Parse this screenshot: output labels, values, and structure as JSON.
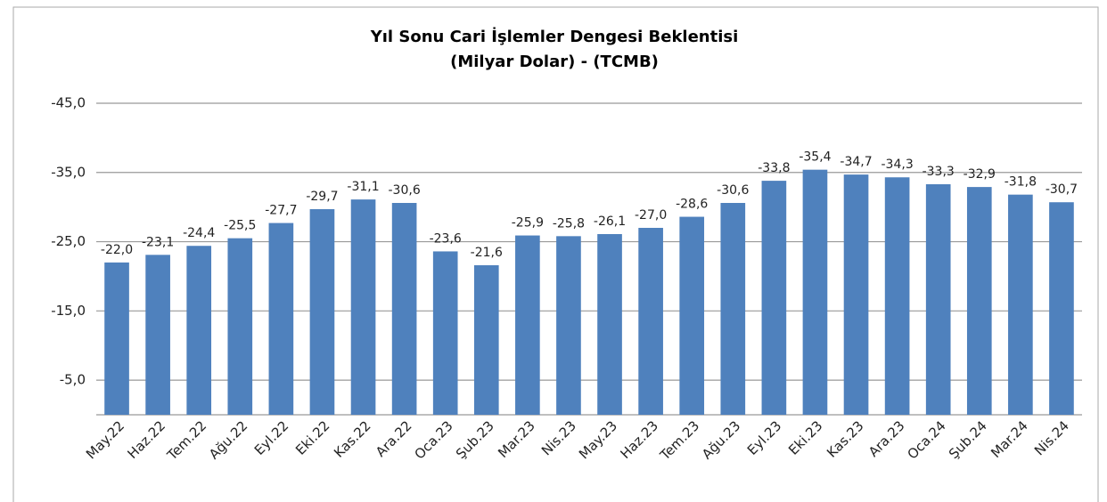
{
  "chart_data": {
    "type": "bar",
    "title": "Yıl Sonu Cari İşlemler Dengesi Beklentisi",
    "subtitle": "(Milyar Dolar) - (TCMB)",
    "categories": [
      "May.22",
      "Haz.22",
      "Tem.22",
      "Ağu.22",
      "Eyl.22",
      "Eki.22",
      "Kas.22",
      "Ara.22",
      "Oca.23",
      "Şub.23",
      "Mar.23",
      "Nis.23",
      "May.23",
      "Haz.23",
      "Tem.23",
      "Ağu.23",
      "Eyl.23",
      "Eki.23",
      "Kas.23",
      "Ara.23",
      "Oca.24",
      "Şub.24",
      "Mar.24",
      "Nis.24"
    ],
    "values": [
      -22.0,
      -23.1,
      -24.4,
      -25.5,
      -27.7,
      -29.7,
      -31.1,
      -30.6,
      -23.6,
      -21.6,
      -25.9,
      -25.8,
      -26.1,
      -27.0,
      -28.6,
      -30.6,
      -33.8,
      -35.4,
      -34.7,
      -34.3,
      -33.3,
      -32.9,
      -31.8,
      -30.7
    ],
    "value_labels": [
      "-22,0",
      "-23,1",
      "-24,4",
      "-25,5",
      "-27,7",
      "-29,7",
      "-31,1",
      "-30,6",
      "-23,6",
      "-21,6",
      "-25,9",
      "-25,8",
      "-26,1",
      "-27,0",
      "-28,6",
      "-30,6",
      "-33,8",
      "-35,4",
      "-34,7",
      "-34,3",
      "-33,3",
      "-32,9",
      "-31,8",
      "-30,7"
    ],
    "color": "#4f81bd",
    "ylim": [
      0,
      -45
    ],
    "yticks": [
      {
        "value": -45,
        "label": "-45,0"
      },
      {
        "value": -35,
        "label": "-35,0"
      },
      {
        "value": -25,
        "label": "-25,0"
      },
      {
        "value": -15,
        "label": "-15,0"
      },
      {
        "value": -5,
        "label": "-5,0"
      }
    ],
    "grid": true
  }
}
